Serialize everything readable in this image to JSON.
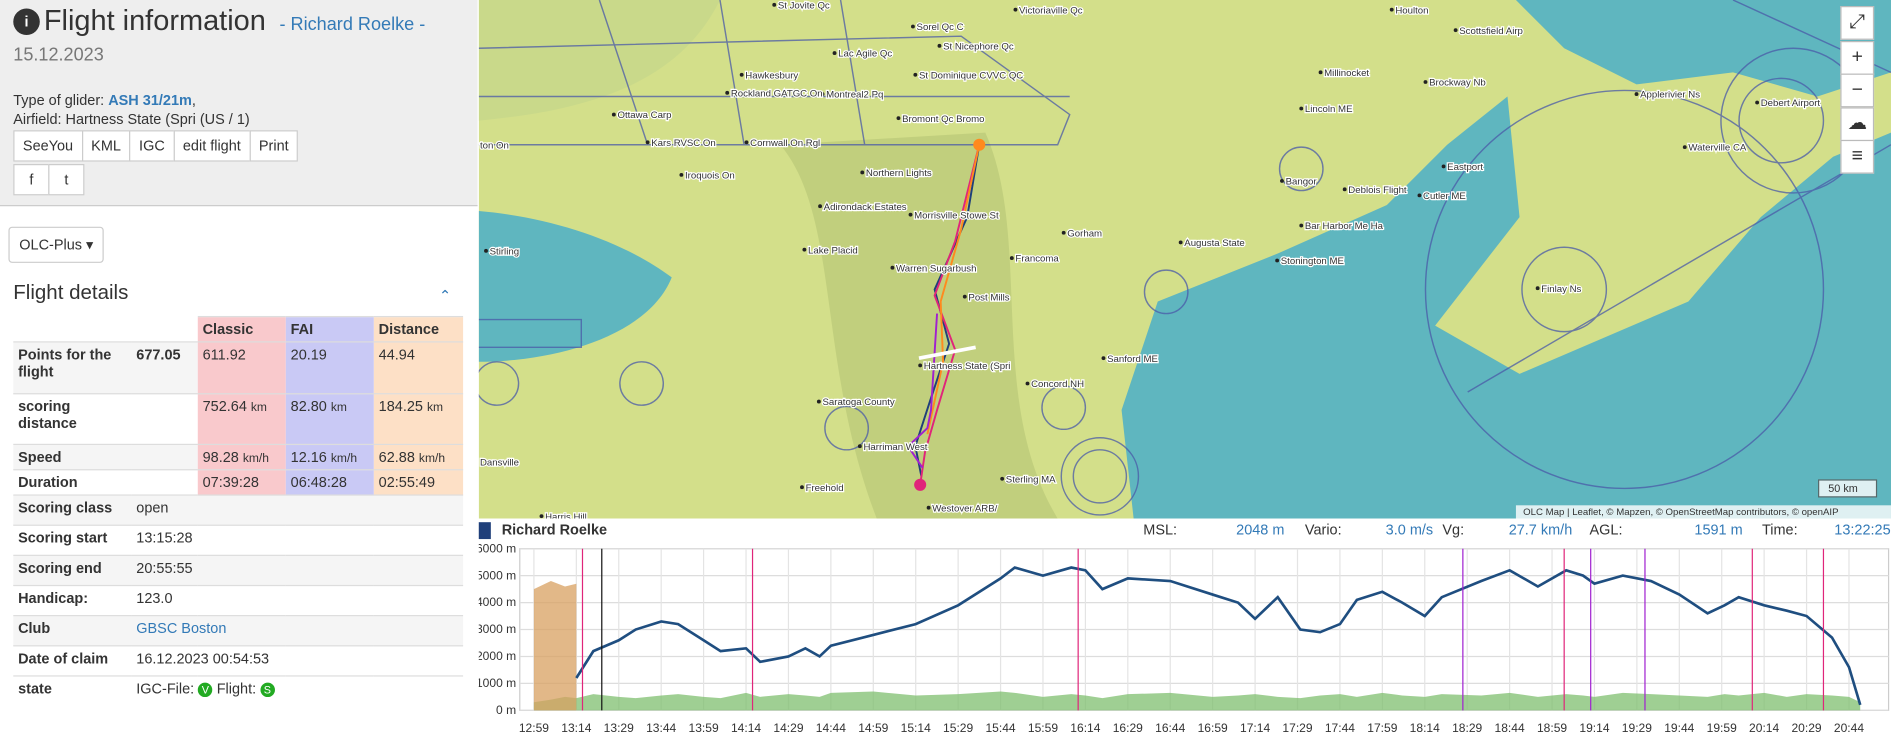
{
  "header": {
    "title": "Flight information",
    "pilot": "- Richard Roelke -",
    "date": "15.12.2023"
  },
  "info": {
    "glider_label": "Type of glider:",
    "glider": "ASH 31/21m",
    "airfield": "Airfield: Hartness State (Spri (US / 1)"
  },
  "buttons": [
    "SeeYou",
    "KML",
    "IGC",
    "edit flight",
    "Print"
  ],
  "dropdown": "OLC-Plus",
  "details": {
    "title": "Flight details",
    "columns": [
      "Classic",
      "FAI",
      "Distance"
    ],
    "scored": [
      {
        "label": "Points for the flight",
        "total": "677.05",
        "values": [
          "611.92",
          "20.19",
          "44.94"
        ]
      },
      {
        "label": "scoring distance",
        "values": [
          "752.64",
          "82.80",
          "184.25"
        ],
        "unit": "km"
      },
      {
        "label": "Speed",
        "values": [
          "98.28",
          "12.16",
          "62.88"
        ],
        "unit": "km/h"
      },
      {
        "label": "Duration",
        "values": [
          "07:39:28",
          "06:48:28",
          "02:55:49"
        ]
      }
    ],
    "rows": [
      {
        "label": "Scoring class",
        "value": "open"
      },
      {
        "label": "Scoring start",
        "value": "13:15:28"
      },
      {
        "label": "Scoring end",
        "value": "20:55:55"
      },
      {
        "label": "Handicap:",
        "value": "123.0"
      },
      {
        "label": "Club",
        "value": "GBSC Boston",
        "link": true
      },
      {
        "label": "Date of claim",
        "value": "16.12.2023 00:54:53"
      }
    ],
    "state": {
      "label": "state",
      "igc": "IGC-File:",
      "igc_badge": "V",
      "flight": "Flight:",
      "flight_badge": "S"
    }
  },
  "map": {
    "labels": [
      "St Jovite Qc",
      "Victoriaville Qc",
      "Houlton",
      "Scottsfield Airp",
      "Sorel Qc C",
      "St Nicephore Qc",
      "Lac Agile Qc",
      "Hawkesbury",
      "St Dominique CVVC QC",
      "Millinocket",
      "Brockway Nb",
      "Applerivier Ns",
      "Debert Airport",
      "Montreal2 Pq",
      "Rockland GATGC On",
      "Ottawa Carp",
      "Bromont Qc Bromo",
      "Lincoln ME",
      "Kars RVSC On",
      "Cornwall On Rgl",
      "Waterville CA",
      "Eastport",
      "Iroquois On",
      "Northern Lights",
      "Bangor",
      "Deblois Flight",
      "Cutler ME",
      "Adirondack Estates",
      "Morrisville Stowe St",
      "Gorham",
      "Bar Harbor Me Ha",
      "Lake Placid",
      "Augusta State",
      "Francoma",
      "Stonington ME",
      "Warren Sugarbush",
      "Finlay Ns",
      "Post Mills",
      "Stirling",
      "Hartness State (Spri",
      "Sanford ME",
      "Concord NH",
      "Saratoga County",
      "Harriman West",
      "Sterling MA",
      "Freehold",
      "Westover ARB/",
      "Dansville",
      "Harris Hill",
      "ton On"
    ],
    "attribution": "OLC Map | Leaflet, © Mapzen, © OpenStreetMap contributors, © openAIP",
    "scale": "50 km"
  },
  "status": {
    "pilot": "Richard Roelke",
    "msl_label": "MSL:",
    "msl": "2048 m",
    "vario_label": "Vario:",
    "vario": "3.0 m/s",
    "vg_label": "Vg:",
    "vg": "27.7 km/h",
    "agl_label": "AGL:",
    "agl": "1591 m",
    "time_label": "Time:",
    "time": "13:22:25"
  },
  "chart_data": {
    "type": "line",
    "x": [
      "12:59",
      "13:05",
      "13:10",
      "13:14",
      "13:20",
      "13:29",
      "13:35",
      "13:44",
      "13:50",
      "13:59",
      "14:05",
      "14:14",
      "14:19",
      "14:29",
      "14:35",
      "14:40",
      "14:44",
      "14:59",
      "15:14",
      "15:29",
      "15:44",
      "15:49",
      "15:59",
      "16:09",
      "16:14",
      "16:20",
      "16:29",
      "16:44",
      "16:59",
      "17:08",
      "17:14",
      "17:22",
      "17:30",
      "17:37",
      "17:44",
      "17:50",
      "17:59",
      "18:06",
      "18:14",
      "18:20",
      "18:34",
      "18:44",
      "18:54",
      "19:04",
      "19:10",
      "19:14",
      "19:24",
      "19:34",
      "19:44",
      "19:54",
      "20:00",
      "20:05",
      "20:14",
      "20:22",
      "20:29",
      "20:38",
      "20:44",
      "20:48"
    ],
    "series": [
      {
        "color": "#1f4e80",
        "values": [
          null,
          null,
          null,
          1200,
          2200,
          2600,
          3000,
          3300,
          3200,
          2600,
          2200,
          2300,
          1800,
          2000,
          2300,
          2000,
          2400,
          2800,
          3200,
          3900,
          4900,
          5300,
          5000,
          5300,
          5200,
          4500,
          4900,
          4800,
          4300,
          4000,
          3400,
          4200,
          3000,
          2900,
          3200,
          4100,
          4400,
          4000,
          3500,
          4200,
          4800,
          5200,
          4600,
          5200,
          5000,
          4700,
          5000,
          4800,
          4300,
          3600,
          3900,
          4200,
          3900,
          3700,
          3500,
          2700,
          1600,
          200
        ]
      },
      {
        "color": "#7fbf6f",
        "area": true,
        "values": [
          300,
          400,
          500,
          450,
          600,
          500,
          450,
          550,
          600,
          500,
          450,
          650,
          500,
          600,
          550,
          500,
          650,
          700,
          550,
          600,
          700,
          650,
          500,
          600,
          550,
          450,
          600,
          650,
          500,
          550,
          600,
          500,
          450,
          550,
          600,
          500,
          650,
          550,
          500,
          600,
          550,
          650,
          500,
          600,
          550,
          500,
          650,
          600,
          550,
          500,
          600,
          550,
          650,
          500,
          600,
          550,
          500,
          300
        ]
      },
      {
        "color": "#d8a060",
        "area": true,
        "values": [
          4500,
          4800,
          4600,
          4700,
          null,
          null,
          null,
          null,
          null,
          null,
          null,
          null,
          null,
          null,
          null,
          null,
          null,
          null,
          null,
          null,
          null,
          null,
          null,
          null,
          null,
          null,
          null,
          null,
          null,
          null,
          null,
          null,
          null,
          null,
          null,
          null,
          null,
          null,
          null,
          null,
          null,
          null,
          null,
          null,
          null,
          null,
          null,
          null,
          null,
          null,
          null,
          null,
          null,
          null,
          null,
          null,
          null,
          null
        ]
      }
    ],
    "xlim": [
      "12:54",
      "20:58"
    ],
    "xticks": [
      "12:59",
      "13:14",
      "13:29",
      "13:44",
      "13:59",
      "14:14",
      "14:29",
      "14:44",
      "14:59",
      "15:14",
      "15:29",
      "15:44",
      "15:59",
      "16:14",
      "16:29",
      "16:44",
      "16:59",
      "17:14",
      "17:29",
      "17:44",
      "17:59",
      "18:14",
      "18:29",
      "18:44",
      "18:59",
      "19:14",
      "19:29",
      "19:44",
      "19:59",
      "20:14",
      "20:29",
      "20:44"
    ],
    "ylim": [
      0,
      6000
    ],
    "yticks": [
      {
        "value": 0,
        "label": "0 m"
      },
      {
        "value": 1000,
        "label": "1000 m"
      },
      {
        "value": 2000,
        "label": "2000 m"
      },
      {
        "value": 3000,
        "label": "3000 m"
      },
      {
        "value": 4000,
        "label": "4000 m"
      },
      {
        "value": 5000,
        "label": "5000 m"
      },
      {
        "value": 6000,
        "label": "6000 m"
      }
    ],
    "grid": true
  }
}
